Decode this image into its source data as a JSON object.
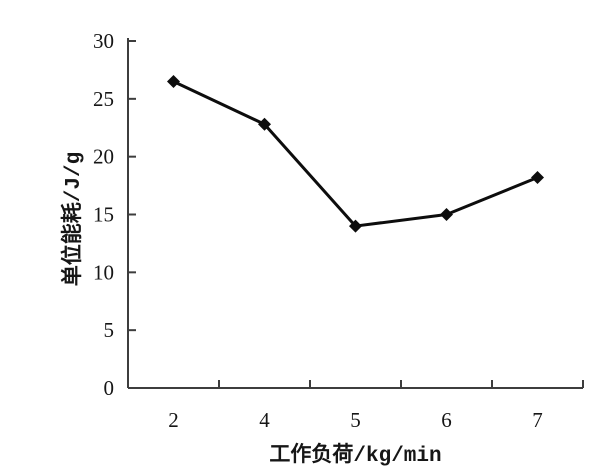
{
  "figure": {
    "background": "#ffffff"
  },
  "chart_data": {
    "type": "line",
    "categories": [
      "2",
      "4",
      "5",
      "6",
      "7"
    ],
    "values": [
      26.5,
      22.8,
      14.0,
      15.0,
      18.2
    ],
    "title": "",
    "xlabel": "工作负荷/kg/min",
    "ylabel": "单位能耗/J/g",
    "ylim": [
      0,
      30
    ],
    "yticks": [
      0,
      5,
      10,
      15,
      20,
      25,
      30
    ],
    "grid": false,
    "legend": "none",
    "marker": "diamond",
    "line_color": "#0d0d0d",
    "axis_color": "#3d3d3d",
    "text_color": "#161616"
  }
}
